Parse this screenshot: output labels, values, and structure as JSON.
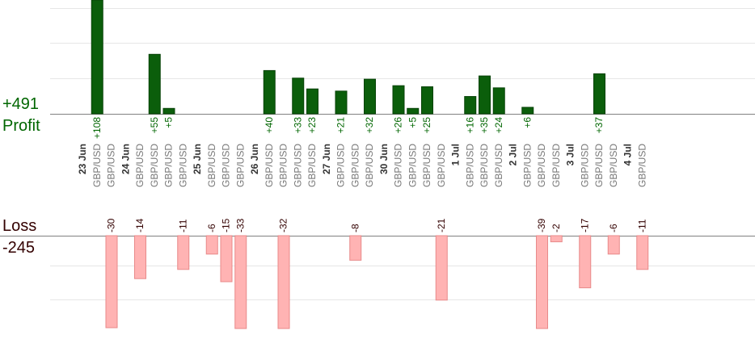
{
  "summary": {
    "profit_total": "+491",
    "profit_label": "Profit",
    "loss_label": "Loss",
    "loss_total": "-245"
  },
  "chart_data": {
    "type": "bar",
    "title": "",
    "xlabel": "",
    "ylabel": "",
    "grid": true,
    "colors": {
      "profit": "#0b5e0b",
      "loss": "#ffb3b3"
    },
    "dates": [
      "23 Jun",
      "24 Jun",
      "25 Jun",
      "26 Jun",
      "27 Jun",
      "30 Jun",
      "1 Jul",
      "2 Jul",
      "3 Jul",
      "4 Jul"
    ],
    "trades": [
      {
        "pair": "GBP/USD",
        "date_index": 0,
        "value": 108
      },
      {
        "pair": "GBP/USD",
        "date_index": 0,
        "value": -30
      },
      {
        "pair": "GBP/USD",
        "date_index": 1,
        "value": -14
      },
      {
        "pair": "GBP/USD",
        "date_index": 1,
        "value": 55
      },
      {
        "pair": "GBP/USD",
        "date_index": 1,
        "value": 5
      },
      {
        "pair": "GBP/USD",
        "date_index": 1,
        "value": -11
      },
      {
        "pair": "GBP/USD",
        "date_index": 2,
        "value": -6
      },
      {
        "pair": "GBP/USD",
        "date_index": 2,
        "value": -15
      },
      {
        "pair": "GBP/USD",
        "date_index": 2,
        "value": -33
      },
      {
        "pair": "GBP/USD",
        "date_index": 3,
        "value": 40
      },
      {
        "pair": "GBP/USD",
        "date_index": 3,
        "value": -32
      },
      {
        "pair": "GBP/USD",
        "date_index": 3,
        "value": 33
      },
      {
        "pair": "GBP/USD",
        "date_index": 3,
        "value": 23
      },
      {
        "pair": "GBP/USD",
        "date_index": 4,
        "value": 21
      },
      {
        "pair": "GBP/USD",
        "date_index": 4,
        "value": -8
      },
      {
        "pair": "GBP/USD",
        "date_index": 4,
        "value": 32
      },
      {
        "pair": "GBP/USD",
        "date_index": 5,
        "value": 26
      },
      {
        "pair": "GBP/USD",
        "date_index": 5,
        "value": 5
      },
      {
        "pair": "GBP/USD",
        "date_index": 5,
        "value": 25
      },
      {
        "pair": "GBP/USD",
        "date_index": 5,
        "value": -21
      },
      {
        "pair": "GBP/USD",
        "date_index": 6,
        "value": 16
      },
      {
        "pair": "GBP/USD",
        "date_index": 6,
        "value": 35
      },
      {
        "pair": "GBP/USD",
        "date_index": 6,
        "value": 24
      },
      {
        "pair": "GBP/USD",
        "date_index": 7,
        "value": 6
      },
      {
        "pair": "GBP/USD",
        "date_index": 7,
        "value": -39
      },
      {
        "pair": "GBP/USD",
        "date_index": 7,
        "value": -2
      },
      {
        "pair": "GBP/USD",
        "date_index": 8,
        "value": -17
      },
      {
        "pair": "GBP/USD",
        "date_index": 8,
        "value": 37
      },
      {
        "pair": "GBP/USD",
        "date_index": 8,
        "value": -6
      },
      {
        "pair": "GBP/USD",
        "date_index": 9,
        "value": -11
      }
    ]
  }
}
